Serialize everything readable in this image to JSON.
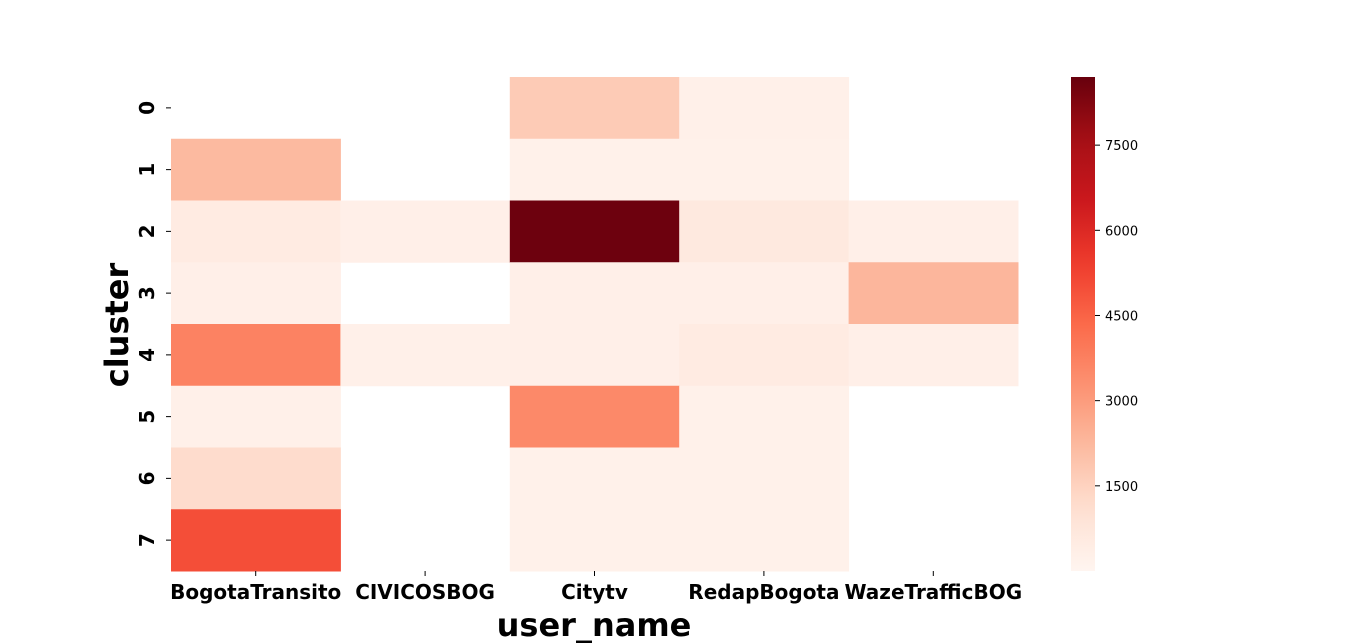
{
  "chart_data": {
    "type": "heatmap",
    "title": "",
    "xlabel": "user_name",
    "ylabel": "cluster",
    "x_categories": [
      "BogotaTransito",
      "CIVICOSBOG",
      "Citytv",
      "RedapBogota",
      "WazeTrafficBOG"
    ],
    "y_categories": [
      "0",
      "1",
      "2",
      "3",
      "4",
      "5",
      "6",
      "7"
    ],
    "values": [
      [
        null,
        null,
        1700,
        250,
        null
      ],
      [
        2200,
        null,
        200,
        200,
        null
      ],
      [
        500,
        300,
        8600,
        600,
        300
      ],
      [
        300,
        null,
        300,
        300,
        2300
      ],
      [
        3700,
        250,
        300,
        500,
        300
      ],
      [
        250,
        null,
        3500,
        200,
        null
      ],
      [
        1200,
        null,
        200,
        200,
        null
      ],
      [
        5000,
        null,
        200,
        200,
        null
      ]
    ],
    "colormap": "Reds",
    "colorbar": {
      "vmin": 0,
      "vmax": 8700,
      "ticks": [
        1500,
        3000,
        4500,
        6000,
        7500
      ]
    }
  }
}
